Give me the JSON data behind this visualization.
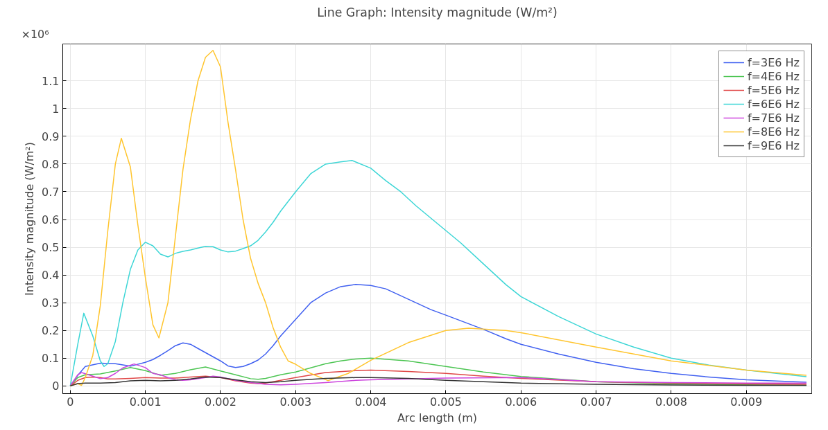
{
  "chart_data": {
    "type": "line",
    "title": "Line Graph: Intensity magnitude (W/m²)",
    "xlabel": "Arc length (m)",
    "ylabel": "Intensity magnitude (W/m²)",
    "annotations": [
      "×10⁶"
    ],
    "xlim": [
      -0.0001,
      0.00987
    ],
    "ylim": [
      -0.028,
      1.233
    ],
    "xticks": [
      0,
      0.001,
      0.002,
      0.003,
      0.004,
      0.005,
      0.006,
      0.007,
      0.008,
      0.009
    ],
    "yticks": [
      0,
      0.1,
      0.2,
      0.3,
      0.4,
      0.5,
      0.6,
      0.7,
      0.8,
      0.9,
      1,
      1.1
    ],
    "grid": true,
    "legend": "top right",
    "marker": "none",
    "line_style": "solid",
    "series": [
      {
        "name": "f=3E6 Hz",
        "color": "#4060f0",
        "x": [
          0,
          0.0001,
          0.0002,
          0.0004,
          0.0006,
          0.0008,
          0.001,
          0.0011,
          0.0012,
          0.0013,
          0.0014,
          0.0015,
          0.0016,
          0.0017,
          0.0018,
          0.0019,
          0.002,
          0.0021,
          0.0022,
          0.0023,
          0.0024,
          0.0025,
          0.0026,
          0.0027,
          0.0028,
          0.0029,
          0.003,
          0.0032,
          0.0034,
          0.0036,
          0.0038,
          0.004,
          0.0042,
          0.0044,
          0.0046,
          0.0048,
          0.005,
          0.0055,
          0.0058,
          0.006,
          0.0065,
          0.007,
          0.0075,
          0.008,
          0.0085,
          0.009,
          0.0098
        ],
        "values": [
          0,
          0.038,
          0.07,
          0.082,
          0.08,
          0.071,
          0.085,
          0.095,
          0.11,
          0.127,
          0.145,
          0.155,
          0.15,
          0.135,
          0.12,
          0.105,
          0.09,
          0.072,
          0.066,
          0.07,
          0.08,
          0.093,
          0.115,
          0.145,
          0.18,
          0.21,
          0.24,
          0.3,
          0.335,
          0.358,
          0.366,
          0.362,
          0.35,
          0.325,
          0.3,
          0.275,
          0.255,
          0.204,
          0.17,
          0.15,
          0.115,
          0.085,
          0.062,
          0.045,
          0.032,
          0.022,
          0.013
        ]
      },
      {
        "name": "f=4E6 Hz",
        "color": "#4cc552",
        "x": [
          0,
          0.0001,
          0.0002,
          0.0004,
          0.0006,
          0.0008,
          0.001,
          0.0012,
          0.0014,
          0.0016,
          0.0018,
          0.002,
          0.0022,
          0.0024,
          0.0025,
          0.0026,
          0.0028,
          0.003,
          0.0032,
          0.0034,
          0.0036,
          0.0038,
          0.004,
          0.0045,
          0.005,
          0.0055,
          0.006,
          0.007,
          0.008,
          0.009,
          0.0098
        ],
        "values": [
          0,
          0.03,
          0.04,
          0.043,
          0.054,
          0.066,
          0.055,
          0.038,
          0.045,
          0.058,
          0.068,
          0.054,
          0.04,
          0.026,
          0.024,
          0.027,
          0.04,
          0.05,
          0.065,
          0.08,
          0.09,
          0.097,
          0.1,
          0.09,
          0.07,
          0.05,
          0.034,
          0.015,
          0.007,
          0.004,
          0.002
        ]
      },
      {
        "name": "f=5E6 Hz",
        "color": "#e04848",
        "x": [
          0,
          0.0001,
          0.0002,
          0.0003,
          0.0004,
          0.0005,
          0.0006,
          0.0008,
          0.001,
          0.0012,
          0.0014,
          0.0016,
          0.0018,
          0.002,
          0.0022,
          0.0024,
          0.0025,
          0.0026,
          0.0028,
          0.003,
          0.0034,
          0.0038,
          0.004,
          0.0045,
          0.005,
          0.0055,
          0.006,
          0.007,
          0.008,
          0.009,
          0.0098
        ],
        "values": [
          0,
          0.02,
          0.03,
          0.032,
          0.03,
          0.025,
          0.025,
          0.027,
          0.03,
          0.028,
          0.028,
          0.032,
          0.035,
          0.03,
          0.018,
          0.01,
          0.008,
          0.01,
          0.02,
          0.03,
          0.048,
          0.055,
          0.057,
          0.052,
          0.045,
          0.035,
          0.027,
          0.015,
          0.01,
          0.007,
          0.006
        ]
      },
      {
        "name": "f=6E6 Hz",
        "color": "#3dd6d6",
        "x": [
          0,
          0.0001,
          0.00018,
          0.0003,
          0.0004,
          0.00045,
          0.0005,
          0.0006,
          0.0007,
          0.0008,
          0.0009,
          0.001,
          0.0011,
          0.0012,
          0.0013,
          0.0014,
          0.0015,
          0.0016,
          0.0017,
          0.0018,
          0.0019,
          0.002,
          0.0021,
          0.0022,
          0.0023,
          0.0024,
          0.0025,
          0.0026,
          0.0027,
          0.0028,
          0.0029,
          0.003,
          0.0032,
          0.0034,
          0.0036,
          0.00375,
          0.004,
          0.0042,
          0.0044,
          0.0046,
          0.0048,
          0.005,
          0.0052,
          0.0055,
          0.0058,
          0.006,
          0.0065,
          0.007,
          0.0075,
          0.008,
          0.0085,
          0.009,
          0.0098
        ],
        "values": [
          0,
          0.15,
          0.262,
          0.18,
          0.09,
          0.07,
          0.08,
          0.16,
          0.3,
          0.42,
          0.49,
          0.518,
          0.505,
          0.475,
          0.465,
          0.478,
          0.485,
          0.49,
          0.497,
          0.503,
          0.502,
          0.49,
          0.483,
          0.486,
          0.495,
          0.505,
          0.525,
          0.555,
          0.59,
          0.63,
          0.665,
          0.7,
          0.765,
          0.8,
          0.808,
          0.813,
          0.785,
          0.74,
          0.7,
          0.65,
          0.605,
          0.56,
          0.515,
          0.44,
          0.365,
          0.322,
          0.25,
          0.187,
          0.14,
          0.1,
          0.075,
          0.057,
          0.033
        ]
      },
      {
        "name": "f=7E6 Hz",
        "color": "#cc44dd",
        "x": [
          0,
          0.0001,
          0.00015,
          0.0003,
          0.0004,
          0.0005,
          0.0006,
          0.0007,
          0.00085,
          0.001,
          0.0011,
          0.0012,
          0.0013,
          0.0014,
          0.0015,
          0.0016,
          0.0018,
          0.0019,
          0.002,
          0.0022,
          0.0024,
          0.0026,
          0.0028,
          0.003,
          0.0034,
          0.0038,
          0.004,
          0.005,
          0.006,
          0.007,
          0.008,
          0.009,
          0.0098
        ],
        "values": [
          0,
          0.04,
          0.048,
          0.035,
          0.026,
          0.03,
          0.045,
          0.065,
          0.079,
          0.066,
          0.045,
          0.04,
          0.03,
          0.022,
          0.02,
          0.022,
          0.03,
          0.035,
          0.032,
          0.02,
          0.012,
          0.006,
          0.004,
          0.006,
          0.012,
          0.02,
          0.022,
          0.028,
          0.03,
          0.015,
          0.012,
          0.01,
          0.01
        ]
      },
      {
        "name": "f=8E6 Hz",
        "color": "#ffc52e",
        "x": [
          0,
          0.0001,
          0.00015,
          0.0002,
          0.0003,
          0.0004,
          0.0005,
          0.0006,
          0.00068,
          0.0008,
          0.0009,
          0.001,
          0.0011,
          0.00118,
          0.0013,
          0.0014,
          0.0015,
          0.0016,
          0.0017,
          0.0018,
          0.0019,
          0.002,
          0.0021,
          0.0022,
          0.0023,
          0.0024,
          0.0025,
          0.0026,
          0.0027,
          0.0028,
          0.0029,
          0.003,
          0.0032,
          0.00343,
          0.0037,
          0.004,
          0.0045,
          0.005,
          0.0053,
          0.0058,
          0.006,
          0.007,
          0.008,
          0.009,
          0.0098
        ],
        "values": [
          0,
          0.008,
          0.002,
          0.03,
          0.11,
          0.29,
          0.56,
          0.8,
          0.893,
          0.79,
          0.58,
          0.39,
          0.22,
          0.173,
          0.3,
          0.54,
          0.78,
          0.96,
          1.1,
          1.185,
          1.21,
          1.15,
          0.95,
          0.78,
          0.6,
          0.46,
          0.37,
          0.3,
          0.21,
          0.14,
          0.09,
          0.078,
          0.045,
          0.019,
          0.045,
          0.092,
          0.156,
          0.2,
          0.208,
          0.2,
          0.192,
          0.14,
          0.09,
          0.057,
          0.038
        ]
      },
      {
        "name": "f=9E6 Hz",
        "color": "#333333",
        "x": [
          0,
          0.0001,
          0.0002,
          0.0004,
          0.0006,
          0.0008,
          0.001,
          0.0012,
          0.0014,
          0.0016,
          0.0018,
          0.002,
          0.0022,
          0.0024,
          0.0026,
          0.0028,
          0.003,
          0.0034,
          0.0038,
          0.004,
          0.0045,
          0.005,
          0.0055,
          0.006,
          0.007,
          0.008,
          0.009,
          0.0098
        ],
        "values": [
          0,
          0.008,
          0.01,
          0.01,
          0.012,
          0.018,
          0.02,
          0.018,
          0.02,
          0.025,
          0.032,
          0.03,
          0.022,
          0.015,
          0.012,
          0.015,
          0.02,
          0.027,
          0.03,
          0.03,
          0.027,
          0.02,
          0.015,
          0.01,
          0.006,
          0.003,
          0.002,
          0.002
        ]
      }
    ]
  }
}
